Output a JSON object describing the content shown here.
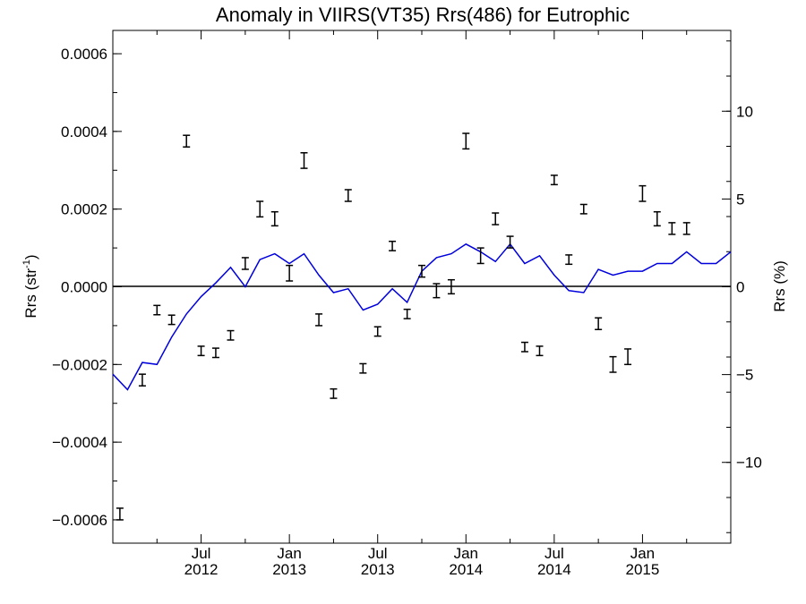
{
  "chart_data": {
    "type": "line",
    "title": "Anomaly in VIIRS(VT35) Rrs(486) for Eutrophic",
    "ylabel_left": "Rrs (str",
    "ylabel_left_sup": "-1",
    "ylabel_left_tail": ")",
    "ylabel_right": "Rrs (%)",
    "ylim": [
      -0.00066,
      0.00066
    ],
    "ylim_right": [
      -14.6,
      14.6
    ],
    "xlim": [
      2012.0,
      2015.5
    ],
    "grid": false,
    "yticks_left": [
      {
        "value": 0.0006,
        "label": "0.0006"
      },
      {
        "value": 0.0004,
        "label": "0.0004"
      },
      {
        "value": 0.0002,
        "label": "0.0002"
      },
      {
        "value": 0.0,
        "label": "0.0000"
      },
      {
        "value": -0.0002,
        "label": "−0.0002"
      },
      {
        "value": -0.0004,
        "label": "−0.0004"
      },
      {
        "value": -0.0006,
        "label": "−0.0006"
      }
    ],
    "yticks_right": [
      {
        "value": 10,
        "label": "10"
      },
      {
        "value": 5,
        "label": "5"
      },
      {
        "value": 0,
        "label": "0"
      },
      {
        "value": -5,
        "label": "−5"
      },
      {
        "value": -10,
        "label": "−10"
      }
    ],
    "xticks": [
      {
        "value": 2012.5,
        "month": "Jul",
        "year": "2012"
      },
      {
        "value": 2013.0,
        "month": "Jan",
        "year": "2013"
      },
      {
        "value": 2013.5,
        "month": "Jul",
        "year": "2013"
      },
      {
        "value": 2014.0,
        "month": "Jan",
        "year": "2014"
      },
      {
        "value": 2014.5,
        "month": "Jul",
        "year": "2014"
      },
      {
        "value": 2015.0,
        "month": "Jan",
        "year": "2015"
      }
    ],
    "xticks_minor": [
      2012.25,
      2012.75,
      2013.25,
      2013.75,
      2014.25,
      2014.75,
      2015.25
    ],
    "series": [
      {
        "color": "#0000dd",
        "x": [
          2012.0,
          2012.083,
          2012.167,
          2012.25,
          2012.333,
          2012.417,
          2012.5,
          2012.583,
          2012.667,
          2012.75,
          2012.833,
          2012.917,
          2013.0,
          2013.083,
          2013.167,
          2013.25,
          2013.333,
          2013.417,
          2013.5,
          2013.583,
          2013.667,
          2013.75,
          2013.833,
          2013.917,
          2014.0,
          2014.083,
          2014.167,
          2014.25,
          2014.333,
          2014.417,
          2014.5,
          2014.583,
          2014.667,
          2014.75,
          2014.833,
          2014.917,
          2015.0,
          2015.083,
          2015.167,
          2015.25,
          2015.333,
          2015.417,
          2015.5
        ],
        "y": [
          -0.000225,
          -0.000265,
          -0.000195,
          -0.0002,
          -0.00013,
          -7e-05,
          -2.5e-05,
          1e-05,
          5e-05,
          0.0,
          7e-05,
          8.5e-05,
          6e-05,
          8.5e-05,
          3e-05,
          -1.5e-05,
          -5e-06,
          -6e-05,
          -4.5e-05,
          -5e-06,
          -4e-05,
          4e-05,
          7.5e-05,
          8.5e-05,
          0.00011,
          9e-05,
          6.5e-05,
          0.00011,
          6e-05,
          8e-05,
          3e-05,
          -1e-05,
          -1.5e-05,
          4.5e-05,
          3e-05,
          4e-05,
          4e-05,
          6e-05,
          6e-05,
          9e-05,
          6e-05,
          6e-05,
          9e-05
        ]
      },
      {
        "color": "#000000",
        "type": "errorbar",
        "x": [
          2012.04,
          2012.167,
          2012.25,
          2012.333,
          2012.417,
          2012.5,
          2012.583,
          2012.667,
          2012.75,
          2012.833,
          2012.917,
          2013.0,
          2013.083,
          2013.167,
          2013.25,
          2013.333,
          2013.417,
          2013.5,
          2013.583,
          2013.667,
          2013.75,
          2013.833,
          2013.917,
          2014.0,
          2014.083,
          2014.167,
          2014.25,
          2014.333,
          2014.417,
          2014.5,
          2014.583,
          2014.667,
          2014.75,
          2014.833,
          2014.917,
          2015.0,
          2015.083,
          2015.167,
          2015.25
        ],
        "y": [
          -0.000585,
          -0.00024,
          -6e-05,
          -8.5e-05,
          0.000375,
          -0.000165,
          -0.00017,
          -0.000125,
          6e-05,
          0.0002,
          0.000175,
          3.5e-05,
          0.000325,
          -8.5e-05,
          -0.000275,
          0.000235,
          -0.00021,
          -0.000115,
          0.000105,
          -7e-05,
          4e-05,
          -1e-05,
          0.0,
          0.000375,
          8e-05,
          0.000175,
          0.000115,
          -0.000155,
          -0.000165,
          0.000275,
          7e-05,
          0.0002,
          -9.5e-05,
          -0.0002,
          -0.00018,
          0.00024,
          0.000175,
          0.00015,
          0.00015
        ],
        "err": [
          1.5e-05,
          1.5e-05,
          1.2e-05,
          1.2e-05,
          1.5e-05,
          1.2e-05,
          1.2e-05,
          1.2e-05,
          1.5e-05,
          2e-05,
          1.8e-05,
          2e-05,
          2e-05,
          1.5e-05,
          1.2e-05,
          1.5e-05,
          1.2e-05,
          1.2e-05,
          1.2e-05,
          1.2e-05,
          1.5e-05,
          1.8e-05,
          1.8e-05,
          2e-05,
          2e-05,
          1.5e-05,
          1.5e-05,
          1.2e-05,
          1.2e-05,
          1.2e-05,
          1.2e-05,
          1.2e-05,
          1.5e-05,
          2e-05,
          2e-05,
          2e-05,
          1.8e-05,
          1.5e-05,
          1.5e-05
        ]
      }
    ]
  }
}
